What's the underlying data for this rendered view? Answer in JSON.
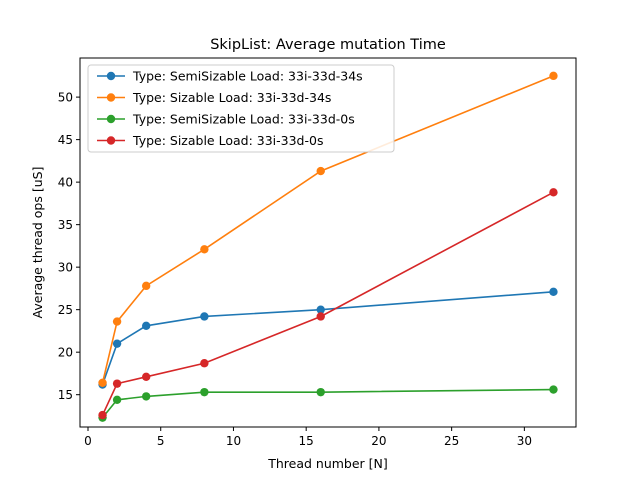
{
  "chart_data": {
    "type": "line",
    "title": "SkipList: Average mutation Time",
    "xlabel": "Thread number [N]",
    "ylabel": "Average thread ops [uS]",
    "xlim": [
      -0.55,
      33.55
    ],
    "ylim": [
      11.2,
      54.6
    ],
    "xticks": [
      0,
      5,
      10,
      15,
      20,
      25,
      30
    ],
    "yticks": [
      15,
      20,
      25,
      30,
      35,
      40,
      45,
      50
    ],
    "grid": false,
    "legend_position": "top-left",
    "x": [
      1,
      2,
      4,
      8,
      16,
      32
    ],
    "series": [
      {
        "name": "Type: SemiSizable Load: 33i-33d-34s",
        "color": "#1f77b4",
        "values": [
          16.2,
          21.0,
          23.1,
          24.2,
          25.0,
          27.1
        ]
      },
      {
        "name": "Type: Sizable Load: 33i-33d-34s",
        "color": "#ff7f0e",
        "values": [
          16.4,
          23.6,
          27.8,
          32.1,
          41.3,
          52.5
        ]
      },
      {
        "name": "Type: SemiSizable Load: 33i-33d-0s",
        "color": "#2ca02c",
        "values": [
          12.3,
          14.4,
          14.8,
          15.3,
          15.3,
          15.6
        ]
      },
      {
        "name": "Type: Sizable Load: 33i-33d-0s",
        "color": "#d62728",
        "values": [
          12.6,
          16.3,
          17.1,
          18.7,
          24.2,
          38.8
        ]
      }
    ]
  }
}
